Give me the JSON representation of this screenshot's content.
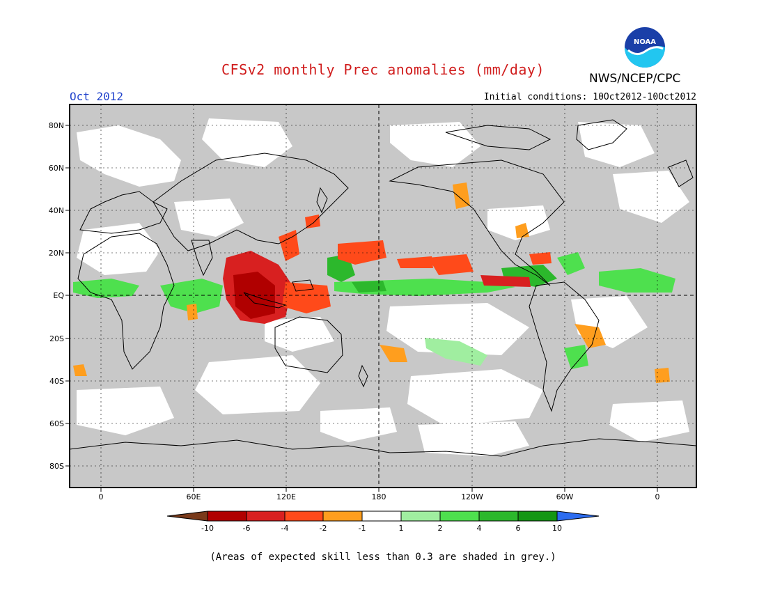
{
  "header": {
    "title": "CFSv2 monthly Prec anomalies (mm/day)",
    "agency": "NWS/NCEP/CPC",
    "month": "Oct 2012",
    "initial_conditions": "Initial conditions: 10Oct2012-10Oct2012",
    "logo_text": "NOAA"
  },
  "map": {
    "lat_labels": [
      "80N",
      "60N",
      "40N",
      "20N",
      "EQ",
      "20S",
      "40S",
      "60S",
      "80S"
    ],
    "lon_labels": [
      "0",
      "60E",
      "120E",
      "180",
      "120W",
      "60W",
      "0"
    ],
    "skill_mask_color": "#c8c8c8",
    "land_outline_color": "#000000"
  },
  "colorbar": {
    "ticks": [
      "-10",
      "-6",
      "-4",
      "-2",
      "-1",
      "1",
      "2",
      "4",
      "6",
      "10"
    ],
    "colors": [
      "#7a3a1a",
      "#b00000",
      "#d82020",
      "#ff4a1a",
      "#ff9e1e",
      "#ffffff",
      "#a0eea0",
      "#4ee04e",
      "#2cb82c",
      "#149614",
      "#2c6cf0"
    ]
  },
  "footnote": "(Areas of expected skill less than 0.3 are shaded in grey.)"
}
